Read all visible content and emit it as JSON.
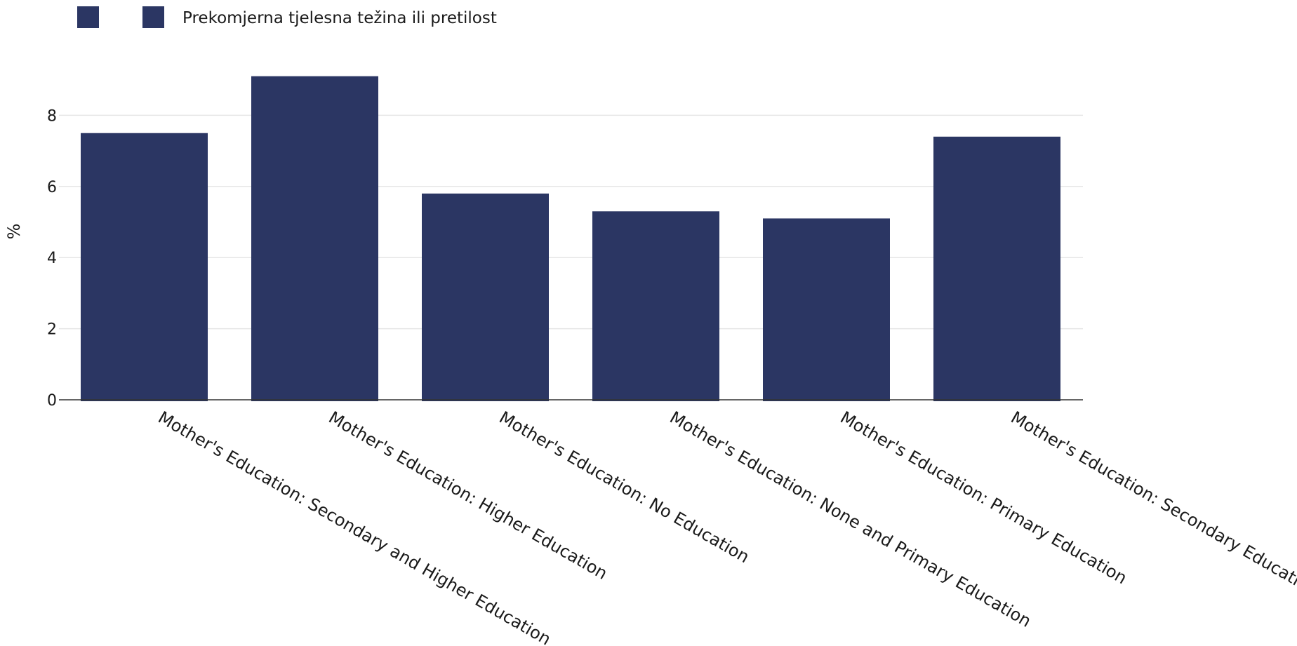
{
  "chart_data": {
    "type": "bar",
    "title": "",
    "xlabel": "",
    "ylabel": "%",
    "ylim": [
      0,
      9.5
    ],
    "yticks": [
      0,
      2,
      4,
      6,
      8
    ],
    "grid": true,
    "legend_position": "top-left",
    "legend": [
      {
        "label": "",
        "color": "#2b3663"
      },
      {
        "label": "Prekomjerna tjelesna težina ili pretilost",
        "color": "#2b3663"
      }
    ],
    "categories": [
      "Mother's Education: Secondary and Higher Education",
      "Mother's Education: Higher Education",
      "Mother's Education: No Education",
      "Mother's Education: None and Primary Education",
      "Mother's Education: Primary Education",
      "Mother's Education: Secondary Education"
    ],
    "series": [
      {
        "name": "Prekomjerna tjelesna težina ili pretilost",
        "color": "#2b3663",
        "values": [
          7.5,
          9.1,
          5.8,
          5.3,
          5.1,
          7.4
        ]
      }
    ]
  }
}
